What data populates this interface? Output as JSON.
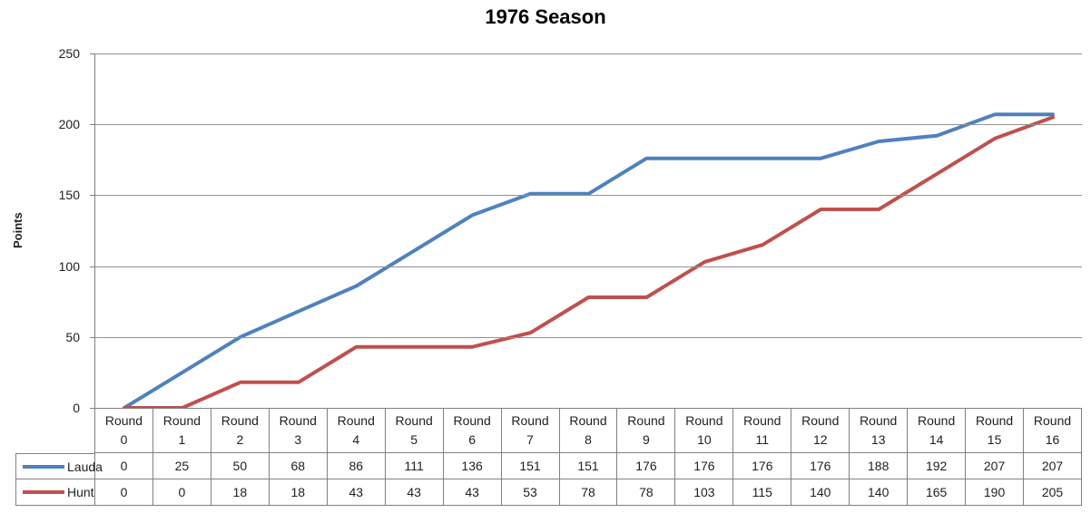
{
  "title": "1976 Season",
  "colors": {
    "lauda_line": "#4F81BD",
    "hunt_line": "#C0504D",
    "gridline": "#919191",
    "axis_border": "#808080"
  },
  "chart_data": {
    "type": "line",
    "title": "1976 Season",
    "xlabel": "",
    "ylabel": "Points",
    "ylim": [
      0,
      250
    ],
    "yticks": [
      0,
      50,
      100,
      150,
      200,
      250
    ],
    "grid": true,
    "legend_position": "left-of-table-rows",
    "categories": [
      "Round 0",
      "Round 1",
      "Round 2",
      "Round 3",
      "Round 4",
      "Round 5",
      "Round 6",
      "Round 7",
      "Round 8",
      "Round 9",
      "Round 10",
      "Round 11",
      "Round 12",
      "Round 13",
      "Round 14",
      "Round 15",
      "Round 16"
    ],
    "series": [
      {
        "name": "Lauda",
        "color": "#4F81BD",
        "values": [
          0,
          25,
          50,
          68,
          86,
          111,
          136,
          151,
          151,
          176,
          176,
          176,
          176,
          188,
          192,
          207,
          207
        ]
      },
      {
        "name": "Hunt",
        "color": "#C0504D",
        "values": [
          0,
          0,
          18,
          18,
          43,
          43,
          43,
          53,
          78,
          78,
          103,
          115,
          140,
          140,
          165,
          190,
          205
        ]
      }
    ]
  }
}
